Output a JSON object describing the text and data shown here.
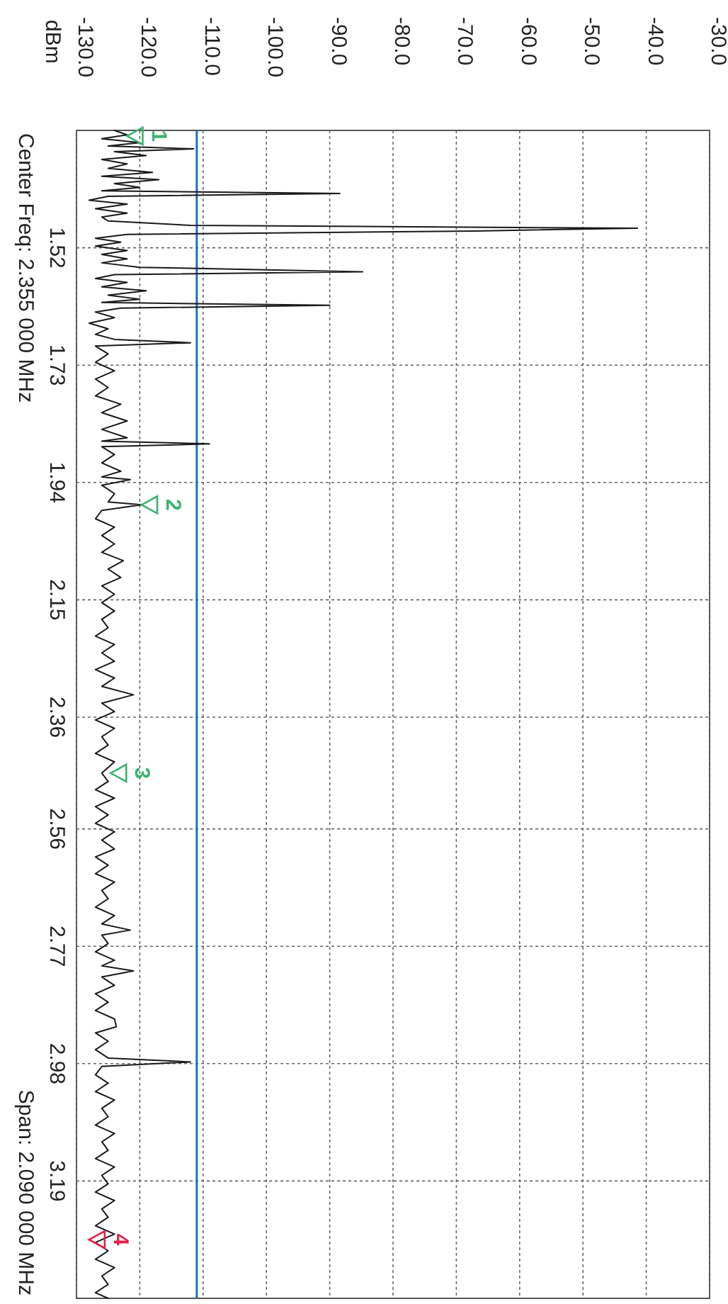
{
  "chart_data": {
    "type": "line",
    "ylim": [
      3.4,
      1.31
    ],
    "yticks": [
      1.52,
      1.73,
      1.94,
      2.15,
      2.36,
      2.56,
      2.77,
      2.98,
      3.19
    ],
    "xlim": [
      -130,
      -30
    ],
    "xticks": [
      {
        "value": -130,
        "label": "-130.0"
      },
      {
        "value": -120,
        "label": "-120.0"
      },
      {
        "value": -110,
        "label": "-110.0"
      },
      {
        "value": -100,
        "label": "-100.0"
      },
      {
        "value": -90,
        "label": "-90.0"
      },
      {
        "value": -80,
        "label": "-80.0"
      },
      {
        "value": -70,
        "label": "-70.0"
      },
      {
        "value": -60,
        "label": "-60.0"
      },
      {
        "value": -50,
        "label": "-50.0"
      },
      {
        "value": -40,
        "label": "-40.0"
      },
      {
        "value": -30,
        "label": "-30.0"
      }
    ],
    "grid": true,
    "marker": "none",
    "line_style": "solid",
    "ref_lines": [
      {
        "axis": "x",
        "value": -111,
        "color": "#1f6fc0"
      }
    ],
    "annotations": [
      {
        "text": "1",
        "y": 1.32,
        "x": -122
      },
      {
        "text": "2",
        "y": 1.98,
        "x": -119.7
      },
      {
        "text": "3",
        "y": 2.46,
        "x": -124.6
      },
      {
        "text": "4",
        "y": 3.295,
        "x": -128
      },
      "dBm",
      "Center Freq: 2.355 000 MHz",
      "Span: 2.090 000 MHz"
    ],
    "series": [
      {
        "color": "#1a1a1a",
        "values": [
          1.31,
          1.318,
          1.325,
          1.332,
          1.338,
          1.343,
          1.348,
          1.355,
          1.362,
          1.37,
          1.378,
          1.385,
          1.392,
          1.398,
          1.405,
          1.412,
          1.418,
          1.423,
          1.428,
          1.435,
          1.442,
          1.45,
          1.458,
          1.465,
          1.472,
          1.48,
          1.485,
          1.49,
          1.496,
          1.503,
          1.51,
          1.517,
          1.525,
          1.532,
          1.54,
          1.547,
          1.555,
          1.563,
          1.568,
          1.575,
          1.582,
          1.59,
          1.597,
          1.605,
          1.612,
          1.618,
          1.623,
          1.628,
          1.635,
          1.645,
          1.655,
          1.665,
          1.675,
          1.684,
          1.69,
          1.696,
          1.71,
          1.725,
          1.74,
          1.755,
          1.77,
          1.785,
          1.8,
          1.815,
          1.83,
          1.845,
          1.86,
          1.866,
          1.871,
          1.876,
          1.89,
          1.905,
          1.92,
          1.93,
          1.935,
          1.945,
          1.96,
          1.975,
          1.98,
          1.99,
          2.005,
          2.02,
          2.035,
          2.05,
          2.065,
          2.08,
          2.095,
          2.11,
          2.125,
          2.14,
          2.155,
          2.17,
          2.185,
          2.2,
          2.215,
          2.23,
          2.245,
          2.26,
          2.275,
          2.29,
          2.305,
          2.32,
          2.335,
          2.35,
          2.365,
          2.38,
          2.395,
          2.41,
          2.425,
          2.44,
          2.46,
          2.475,
          2.49,
          2.505,
          2.52,
          2.535,
          2.55,
          2.565,
          2.58,
          2.596,
          2.61,
          2.625,
          2.64,
          2.655,
          2.67,
          2.685,
          2.7,
          2.715,
          2.73,
          2.741,
          2.75,
          2.765,
          2.78,
          2.795,
          2.805,
          2.814,
          2.825,
          2.84,
          2.855,
          2.87,
          2.885,
          2.9,
          2.914,
          2.925,
          2.94,
          2.955,
          2.97,
          2.977,
          2.985,
          3.0,
          3.015,
          3.03,
          3.045,
          3.06,
          3.075,
          3.09,
          3.105,
          3.12,
          3.135,
          3.15,
          3.165,
          3.18,
          3.195,
          3.21,
          3.225,
          3.24,
          3.255,
          3.27,
          3.285,
          3.3,
          3.315,
          3.33,
          3.345,
          3.36,
          3.375,
          3.39,
          3.4
        ],
        "x": [
          -124,
          -122,
          -126,
          -120,
          -125,
          -111.5,
          -124,
          -119,
          -126,
          -122,
          -125,
          -118,
          -126,
          -117,
          -124,
          -120,
          -126,
          -88.4,
          -125,
          -128,
          -122,
          -127,
          -122,
          -126,
          -125,
          -112,
          -41.4,
          -67,
          -122,
          -127,
          -123,
          -127,
          -122,
          -126,
          -122,
          -126,
          -120,
          -84.8,
          -124,
          -127,
          -122,
          -126,
          -119,
          -125,
          -120,
          -126,
          -90,
          -123,
          -127,
          -124,
          -128,
          -125,
          -127,
          -124,
          -112,
          -127,
          -125,
          -127,
          -124,
          -127,
          -125,
          -127,
          -123,
          -126,
          -122,
          -126,
          -122,
          -126,
          -109,
          -126,
          -124,
          -126,
          -123,
          -126,
          -121.5,
          -126,
          -124,
          -125,
          -119.7,
          -126,
          -127,
          -124,
          -126,
          -124,
          -126,
          -122.6,
          -125,
          -123,
          -126,
          -124,
          -126,
          -124,
          -126,
          -125,
          -127,
          -124,
          -126,
          -124,
          -127,
          -124,
          -126,
          -121,
          -126,
          -124,
          -127,
          -124,
          -126,
          -125,
          -127,
          -124,
          -126,
          -125,
          -127,
          -124,
          -127,
          -125,
          -127,
          -124,
          -126,
          -124,
          -127,
          -125,
          -127,
          -124,
          -126,
          -125,
          -127,
          -124,
          -126,
          -121.5,
          -126,
          -125,
          -127,
          -124,
          -126,
          -121,
          -126,
          -124,
          -127,
          -125,
          -127,
          -124,
          -123.7,
          -127,
          -125,
          -127,
          -125,
          -112,
          -126,
          -127,
          -125,
          -127,
          -124,
          -126,
          -125,
          -127,
          -124,
          -126,
          -125,
          -127,
          -124,
          -126,
          -125,
          -127,
          -124,
          -126,
          -125,
          -127,
          -124,
          -127,
          -125,
          -127,
          -124,
          -126,
          -125,
          -127,
          -125
        ]
      }
    ]
  }
}
